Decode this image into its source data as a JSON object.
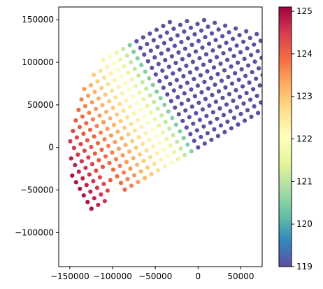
{
  "chart_data": {
    "type": "scatter",
    "title": "",
    "xlabel": "",
    "ylabel": "",
    "xlim": [
      -163000,
      75000
    ],
    "ylim": [
      -140000,
      165000
    ],
    "x_ticks": [
      -150000,
      -100000,
      -50000,
      0,
      50000
    ],
    "x_tick_labels": [
      "−150000",
      "−100000",
      "−50000",
      "0",
      "50000"
    ],
    "y_ticks": [
      -100000,
      -50000,
      0,
      50000,
      100000,
      150000
    ],
    "y_tick_labels": [
      "−100000",
      "−50000",
      "0",
      "50000",
      "100000",
      "150000"
    ],
    "grid": false,
    "colormap": "Spectral",
    "color_range": [
      119.0,
      125.1
    ],
    "colorbar_ticks": [
      119,
      120,
      121,
      122,
      123,
      124,
      125
    ],
    "colorbar_tick_labels": [
      "119",
      "120",
      "121",
      "122",
      "123",
      "124",
      "125"
    ],
    "point_grid": {
      "spacing": 9000,
      "rotation_deg": 30,
      "radius": 152000,
      "half_disk_normal": [
        -0.5,
        0.866
      ],
      "value_axis_normal": [
        0.866,
        0.5
      ],
      "value_at_edge": 125.1,
      "value_at_diameter": 119.0,
      "gap_regions": [
        {
          "x": [
            -104000,
            -92000
          ],
          "y": [
            -61000,
            -43000
          ]
        },
        {
          "x": [
            -109000,
            -101000
          ],
          "y": [
            -36000,
            -27000
          ]
        }
      ]
    }
  }
}
